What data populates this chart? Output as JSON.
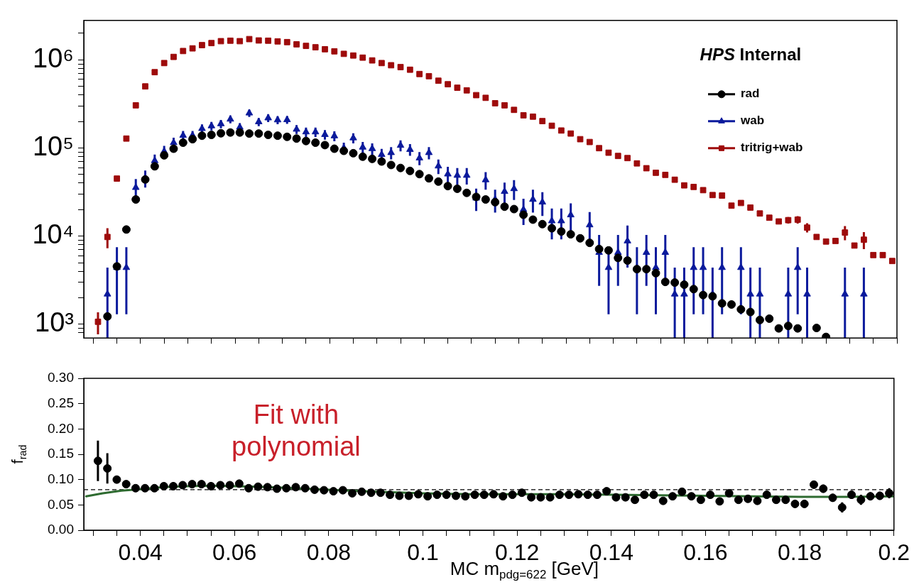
{
  "chart_data": [
    {
      "type": "scatter",
      "log": "y",
      "legend": "top right",
      "tick_labels": "y",
      "annotations": [
        "HPS Internal"
      ],
      "xlim": [
        0.028,
        0.2
      ],
      "xticks": [
        {
          "value": 0.03,
          "label": null
        },
        {
          "value": 0.035,
          "label": null
        },
        0.04,
        {
          "value": 0.045,
          "label": null
        },
        {
          "value": 0.05,
          "label": null
        },
        {
          "value": 0.055,
          "label": null
        },
        0.06,
        {
          "value": 0.065,
          "label": null
        },
        {
          "value": 0.07,
          "label": null
        },
        {
          "value": 0.075,
          "label": null
        },
        0.08,
        {
          "value": 0.085,
          "label": null
        },
        {
          "value": 0.09,
          "label": null
        },
        {
          "value": 0.095,
          "label": null
        },
        0.1,
        {
          "value": 0.105,
          "label": null
        },
        {
          "value": 0.11,
          "label": null
        },
        {
          "value": 0.115,
          "label": null
        },
        0.12,
        {
          "value": 0.125,
          "label": null
        },
        {
          "value": 0.13,
          "label": null
        },
        {
          "value": 0.135,
          "label": null
        },
        0.14,
        {
          "value": 0.145,
          "label": null
        },
        {
          "value": 0.15,
          "label": null
        },
        {
          "value": 0.155,
          "label": null
        },
        0.16,
        {
          "value": 0.165,
          "label": null
        },
        {
          "value": 0.17,
          "label": null
        },
        {
          "value": 0.175,
          "label": null
        },
        0.18,
        {
          "value": 0.185,
          "label": null
        },
        {
          "value": 0.19,
          "label": null
        },
        {
          "value": 0.195,
          "label": null
        },
        0.2
      ],
      "ylim": [
        700,
        2800000
      ],
      "yticks": [
        {
          "value": 800,
          "label": null
        },
        {
          "value": 900,
          "label": null
        },
        {
          "value": 1000,
          "label": "10³"
        },
        {
          "value": 2000,
          "label": null
        },
        {
          "value": 3000,
          "label": null
        },
        {
          "value": 4000,
          "label": null
        },
        {
          "value": 5000,
          "label": null
        },
        {
          "value": 6000,
          "label": null
        },
        {
          "value": 7000,
          "label": null
        },
        {
          "value": 8000,
          "label": null
        },
        {
          "value": 9000,
          "label": null
        },
        {
          "value": 10000,
          "label": "10⁴"
        },
        {
          "value": 20000,
          "label": null
        },
        {
          "value": 30000,
          "label": null
        },
        {
          "value": 40000,
          "label": null
        },
        {
          "value": 50000,
          "label": null
        },
        {
          "value": 60000,
          "label": null
        },
        {
          "value": 70000,
          "label": null
        },
        {
          "value": 80000,
          "label": null
        },
        {
          "value": 90000,
          "label": null
        },
        {
          "value": 100000,
          "label": "10⁵"
        },
        {
          "value": 200000,
          "label": null
        },
        {
          "value": 300000,
          "label": null
        },
        {
          "value": 400000,
          "label": null
        },
        {
          "value": 500000,
          "label": null
        },
        {
          "value": 600000,
          "label": null
        },
        {
          "value": 700000,
          "label": null
        },
        {
          "value": 800000,
          "label": null
        },
        {
          "value": 900000,
          "label": null
        },
        {
          "value": 1000000,
          "label": "10⁶"
        },
        {
          "value": 2000000,
          "label": null
        }
      ],
      "x": [
        0.031,
        0.033,
        0.035,
        0.037,
        0.039,
        0.041,
        0.043,
        0.045,
        0.047,
        0.049,
        0.051,
        0.053,
        0.055,
        0.057,
        0.059,
        0.061,
        0.063,
        0.065,
        0.067,
        0.069,
        0.071,
        0.073,
        0.075,
        0.077,
        0.079,
        0.081,
        0.083,
        0.085,
        0.087,
        0.089,
        0.091,
        0.093,
        0.095,
        0.097,
        0.099,
        0.101,
        0.103,
        0.105,
        0.107,
        0.109,
        0.111,
        0.113,
        0.115,
        0.117,
        0.119,
        0.121,
        0.123,
        0.125,
        0.127,
        0.129,
        0.131,
        0.133,
        0.135,
        0.137,
        0.139,
        0.141,
        0.143,
        0.145,
        0.147,
        0.149,
        0.151,
        0.153,
        0.155,
        0.157,
        0.159,
        0.161,
        0.163,
        0.165,
        0.167,
        0.169,
        0.171,
        0.173,
        0.175,
        0.177,
        0.179,
        0.181,
        0.183,
        0.185,
        0.187,
        0.189,
        0.191,
        0.193,
        0.195,
        0.197,
        0.199
      ],
      "series": [
        {
          "name": "rad",
          "color": "#000000",
          "marker": "circle",
          "values": [
            null,
            1230,
            4540,
            11900,
            26100,
            44000,
            62000,
            82600,
            98200,
            115000,
            126000,
            138000,
            141000,
            147000,
            150000,
            150000,
            146000,
            146000,
            141000,
            138000,
            134000,
            128000,
            120000,
            115000,
            108000,
            98200,
            92900,
            87300,
            79700,
            75300,
            70300,
            64200,
            59400,
            55000,
            50600,
            45300,
            41600,
            37000,
            34500,
            31000,
            27900,
            26100,
            24300,
            21600,
            20300,
            17500,
            15400,
            13700,
            12300,
            11300,
            10500,
            9460,
            8400,
            7150,
            6900,
            5670,
            5290,
            4230,
            4230,
            3810,
            3030,
            2980,
            2820,
            2510,
            2150,
            2080,
            1730,
            1680,
            1480,
            1380,
            1120,
            1160,
            900,
            960,
            900,
            null,
            910,
            720,
            null,
            null,
            null,
            null,
            null,
            null,
            null
          ]
        },
        {
          "name": "wab",
          "color": "#0b1a9c",
          "marker": "triangle",
          "values": [
            null,
            2200,
            4400,
            4400,
            35600,
            45600,
            71800,
            91600,
            115000,
            139000,
            139000,
            166000,
            178000,
            188000,
            212000,
            172000,
            249000,
            198000,
            219000,
            208000,
            209000,
            163000,
            152000,
            152000,
            142000,
            137000,
            100000,
            130000,
            102000,
            98200,
            84300,
            88500,
            107000,
            96100,
            76900,
            88500,
            62400,
            50600,
            48900,
            48900,
            27000,
            43500,
            26100,
            32100,
            34500,
            20000,
            26100,
            24300,
            14900,
            14900,
            17400,
            null,
            13400,
            6530,
            4400,
            6530,
            8810,
            4400,
            6530,
            4400,
            6530,
            2200,
            2200,
            4400,
            4400,
            2200,
            4400,
            null,
            4400,
            2200,
            2200,
            null,
            null,
            2200,
            4400,
            2200,
            null,
            null,
            null,
            2200,
            null,
            2200,
            null,
            null,
            null
          ],
          "errors": [
            null,
            [
              700,
              4400
            ],
            3100,
            3100,
            8800,
            10000,
            12600,
            14200,
            15900,
            17500,
            17500,
            19100,
            19800,
            20300,
            21600,
            19500,
            23400,
            20900,
            21900,
            21400,
            21400,
            18900,
            18300,
            18300,
            17700,
            17400,
            14800,
            16900,
            15000,
            14700,
            13600,
            14000,
            15300,
            14500,
            13000,
            14000,
            11700,
            10500,
            10400,
            10400,
            7700,
            9800,
            7600,
            8400,
            8700,
            6600,
            7600,
            7300,
            5700,
            5700,
            6200,
            null,
            5400,
            3800,
            3100,
            3800,
            4400,
            3100,
            3800,
            3100,
            3800,
            [
              700,
              4400
            ],
            [
              700,
              4400
            ],
            3100,
            3100,
            [
              700,
              4400
            ],
            3100,
            null,
            3100,
            [
              700,
              4400
            ],
            [
              700,
              4400
            ],
            null,
            null,
            [
              700,
              4400
            ],
            3100,
            [
              700,
              4400
            ],
            null,
            null,
            null,
            [
              700,
              4400
            ],
            null,
            [
              700,
              4400
            ],
            null,
            null,
            null
          ]
        },
        {
          "name": "tritrig+wab",
          "color": "#9e0b0b",
          "marker": "square",
          "values": [
            1070,
            9800,
            45000,
            128000,
            305000,
            500000,
            725000,
            920000,
            1080000,
            1260000,
            1350000,
            1470000,
            1550000,
            1630000,
            1650000,
            1630000,
            1720000,
            1660000,
            1650000,
            1620000,
            1590000,
            1500000,
            1440000,
            1390000,
            1320000,
            1250000,
            1170000,
            1120000,
            1060000,
            986000,
            920000,
            869000,
            828000,
            773000,
            691000,
            653000,
            580000,
            529000,
            483000,
            451000,
            398000,
            371000,
            322000,
            305000,
            271000,
            235000,
            227000,
            202000,
            179000,
            158000,
            146000,
            126000,
            117000,
            99600,
            88500,
            81300,
            76900,
            66900,
            59000,
            52400,
            49600,
            43700,
            37700,
            36200,
            33300,
            29300,
            28900,
            22200,
            23800,
            21100,
            18100,
            16200,
            14700,
            15200,
            15400,
            12500,
            9800,
            8700,
            8830,
            11000,
            7830,
            9120,
            6110,
            6110,
            5230
          ],
          "errors": [
            300,
            2500,
            null,
            null,
            null,
            null,
            null,
            null,
            null,
            null,
            null,
            null,
            null,
            null,
            null,
            null,
            null,
            null,
            null,
            null,
            null,
            null,
            null,
            null,
            null,
            null,
            null,
            null,
            null,
            null,
            null,
            null,
            null,
            null,
            null,
            null,
            null,
            null,
            null,
            null,
            null,
            null,
            null,
            null,
            null,
            null,
            null,
            null,
            null,
            null,
            null,
            null,
            null,
            null,
            null,
            null,
            null,
            null,
            null,
            null,
            null,
            null,
            null,
            null,
            null,
            null,
            null,
            null,
            null,
            null,
            null,
            null,
            null,
            1300,
            1500,
            1500,
            null,
            null,
            null,
            2000,
            null,
            2000,
            null,
            null,
            null
          ]
        }
      ]
    },
    {
      "type": "scatter",
      "xlabel": "MC m$_{pdg=622}$ [GeV]",
      "ylabel": "f$_{rad}$",
      "annotations": [
        "Fit with polynomial"
      ],
      "xlim": [
        0.028,
        0.2
      ],
      "xticks": [
        {
          "value": 0.03,
          "label": null
        },
        {
          "value": 0.035,
          "label": null
        },
        0.04,
        {
          "value": 0.045,
          "label": null
        },
        {
          "value": 0.05,
          "label": null
        },
        {
          "value": 0.055,
          "label": null
        },
        0.06,
        {
          "value": 0.065,
          "label": null
        },
        {
          "value": 0.07,
          "label": null
        },
        {
          "value": 0.075,
          "label": null
        },
        0.08,
        {
          "value": 0.085,
          "label": null
        },
        {
          "value": 0.09,
          "label": null
        },
        {
          "value": 0.095,
          "label": null
        },
        0.1,
        {
          "value": 0.105,
          "label": null
        },
        {
          "value": 0.11,
          "label": null
        },
        {
          "value": 0.115,
          "label": null
        },
        0.12,
        {
          "value": 0.125,
          "label": null
        },
        {
          "value": 0.13,
          "label": null
        },
        {
          "value": 0.135,
          "label": null
        },
        0.14,
        {
          "value": 0.145,
          "label": null
        },
        {
          "value": 0.15,
          "label": null
        },
        {
          "value": 0.155,
          "label": null
        },
        0.16,
        {
          "value": 0.165,
          "label": null
        },
        {
          "value": 0.17,
          "label": null
        },
        {
          "value": 0.175,
          "label": null
        },
        0.18,
        {
          "value": 0.185,
          "label": null
        },
        {
          "value": 0.19,
          "label": null
        },
        {
          "value": 0.195,
          "label": null
        },
        0.2
      ],
      "ylim": [
        0,
        0.3
      ],
      "yticks": [
        {
          "value": 0,
          "label": "0.00"
        },
        {
          "value": 0.05,
          "label": "0.05"
        },
        {
          "value": 0.1,
          "label": "0.10"
        },
        {
          "value": 0.15,
          "label": "0.15"
        },
        {
          "value": 0.2,
          "label": "0.20"
        },
        {
          "value": 0.25,
          "label": "0.25"
        },
        {
          "value": 0.3,
          "label": "0.30"
        }
      ],
      "ref_lines": [
        {
          "axis": "y",
          "value": 0.08,
          "color": "#000000",
          "line_style": "dashed"
        }
      ],
      "x": [
        0.031,
        0.033,
        0.035,
        0.037,
        0.039,
        0.041,
        0.043,
        0.045,
        0.047,
        0.049,
        0.051,
        0.053,
        0.055,
        0.057,
        0.059,
        0.061,
        0.063,
        0.065,
        0.067,
        0.069,
        0.071,
        0.073,
        0.075,
        0.077,
        0.079,
        0.081,
        0.083,
        0.085,
        0.087,
        0.089,
        0.091,
        0.093,
        0.095,
        0.097,
        0.099,
        0.101,
        0.103,
        0.105,
        0.107,
        0.109,
        0.111,
        0.113,
        0.115,
        0.117,
        0.119,
        0.121,
        0.123,
        0.125,
        0.127,
        0.129,
        0.131,
        0.133,
        0.135,
        0.137,
        0.139,
        0.141,
        0.143,
        0.145,
        0.147,
        0.149,
        0.151,
        0.153,
        0.155,
        0.157,
        0.159,
        0.161,
        0.163,
        0.165,
        0.167,
        0.169,
        0.171,
        0.173,
        0.175,
        0.177,
        0.179,
        0.181,
        0.183,
        0.185,
        0.187,
        0.189,
        0.191,
        0.193,
        0.195,
        0.197,
        0.199
      ],
      "series": [
        {
          "color": "#000000",
          "marker": "circle",
          "values": [
            0.137,
            0.122,
            0.1,
            0.091,
            0.083,
            0.083,
            0.083,
            0.087,
            0.087,
            0.089,
            0.091,
            0.091,
            0.087,
            0.089,
            0.089,
            0.092,
            0.083,
            0.086,
            0.085,
            0.082,
            0.083,
            0.085,
            0.083,
            0.08,
            0.079,
            0.077,
            0.079,
            0.073,
            0.076,
            0.074,
            0.074,
            0.07,
            0.068,
            0.068,
            0.071,
            0.067,
            0.07,
            0.07,
            0.068,
            0.067,
            0.07,
            0.07,
            0.071,
            0.067,
            0.07,
            0.074,
            0.065,
            0.065,
            0.065,
            0.07,
            0.07,
            0.071,
            0.07,
            0.07,
            0.077,
            0.065,
            0.065,
            0.06,
            0.07,
            0.07,
            0.058,
            0.067,
            0.076,
            0.067,
            0.06,
            0.07,
            0.057,
            0.073,
            0.06,
            0.062,
            0.058,
            0.07,
            0.06,
            0.06,
            0.052,
            0.052,
            0.09,
            0.082,
            0.064,
            0.045,
            0.07,
            0.06,
            0.067,
            0.068,
            0.073
          ],
          "errors": [
            0.04,
            0.03,
            null,
            null,
            null,
            null,
            null,
            null,
            null,
            null,
            null,
            null,
            null,
            null,
            null,
            null,
            null,
            null,
            null,
            null,
            null,
            null,
            null,
            null,
            null,
            null,
            null,
            null,
            null,
            null,
            null,
            null,
            null,
            null,
            null,
            null,
            null,
            null,
            null,
            null,
            null,
            null,
            null,
            null,
            null,
            null,
            null,
            null,
            null,
            null,
            null,
            null,
            null,
            null,
            null,
            null,
            null,
            null,
            null,
            null,
            null,
            null,
            null,
            null,
            null,
            null,
            null,
            null,
            null,
            null,
            null,
            null,
            null,
            null,
            0.008,
            0.008,
            0.008,
            0.008,
            0.008,
            0.01,
            0.008,
            0.01,
            0.008,
            0.008,
            0.01
          ]
        },
        {
          "type": "line",
          "color": "#2e6b30",
          "marker": "none",
          "x": [
            0.0285,
            0.032,
            0.036,
            0.04,
            0.045,
            0.05,
            0.055,
            0.06,
            0.065,
            0.07,
            0.08,
            0.09,
            0.1,
            0.11,
            0.12,
            0.13,
            0.14,
            0.15,
            0.16,
            0.17,
            0.18,
            0.19,
            0.2
          ],
          "values": [
            0.067,
            0.073,
            0.078,
            0.081,
            0.085,
            0.087,
            0.088,
            0.087,
            0.086,
            0.084,
            0.08,
            0.076,
            0.073,
            0.071,
            0.071,
            0.071,
            0.07,
            0.069,
            0.068,
            0.067,
            0.066,
            0.066,
            0.067
          ]
        }
      ]
    }
  ]
}
